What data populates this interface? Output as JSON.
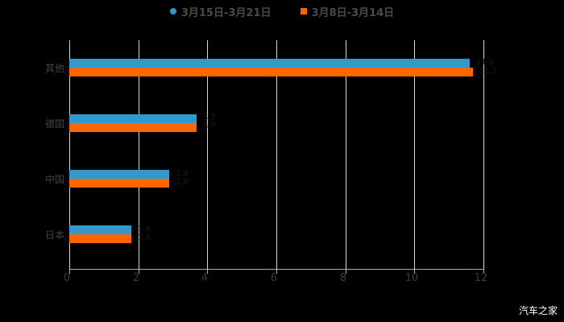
{
  "chart_data": {
    "type": "bar",
    "orientation": "horizontal",
    "title": "",
    "xlabel": "",
    "ylabel": "",
    "categories": [
      "其他",
      "德国",
      "中国",
      "日本"
    ],
    "series": [
      {
        "name": "3月15日-3月21日",
        "color": "#3399cc",
        "values": [
          11.6,
          3.7,
          2.9,
          1.8
        ]
      },
      {
        "name": "3月8日-3月14日",
        "color": "#ff6600",
        "values": [
          11.7,
          3.7,
          2.9,
          1.8
        ]
      }
    ],
    "xlim": [
      0,
      12
    ],
    "xticks": [
      "0",
      "2",
      "4",
      "6",
      "8",
      "10",
      "12"
    ],
    "grid": true,
    "legend_position": "top"
  },
  "legend": {
    "items": [
      {
        "label": "3月15日-3月21日",
        "color": "#3399cc",
        "shape": "circle"
      },
      {
        "label": "3月8日-3月14日",
        "color": "#ff6600",
        "shape": "square"
      }
    ]
  },
  "watermark": "汽车之家"
}
